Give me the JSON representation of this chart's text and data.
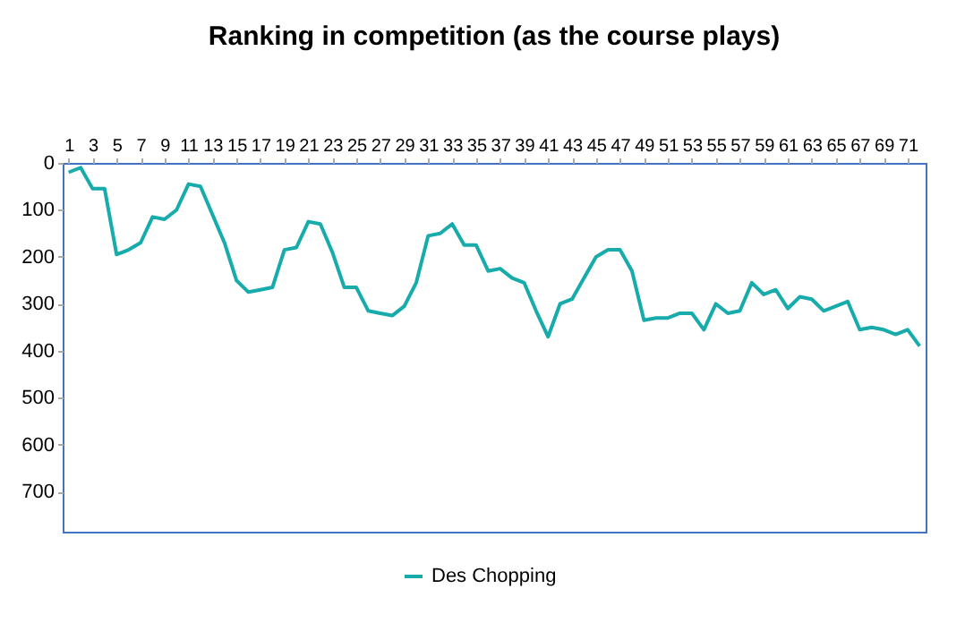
{
  "chart_data": {
    "type": "line",
    "title": "Ranking in competition (as the course plays)",
    "x": [
      1,
      2,
      3,
      4,
      5,
      6,
      7,
      8,
      9,
      10,
      11,
      12,
      13,
      14,
      15,
      16,
      17,
      18,
      19,
      20,
      21,
      22,
      23,
      24,
      25,
      26,
      27,
      28,
      29,
      30,
      31,
      32,
      33,
      34,
      35,
      36,
      37,
      38,
      39,
      40,
      41,
      42,
      43,
      44,
      45,
      46,
      47,
      48,
      49,
      50,
      51,
      52,
      53,
      54,
      55,
      56,
      57,
      58,
      59,
      60,
      61,
      62,
      63,
      64,
      65,
      66,
      67,
      68,
      69,
      70,
      71,
      72
    ],
    "xlim": [
      0.5,
      72.5
    ],
    "xticks": [
      1,
      3,
      5,
      7,
      9,
      11,
      13,
      15,
      17,
      19,
      21,
      23,
      25,
      27,
      29,
      31,
      33,
      35,
      37,
      39,
      41,
      43,
      45,
      47,
      49,
      51,
      53,
      55,
      57,
      59,
      61,
      63,
      65,
      67,
      69,
      71
    ],
    "series": [
      {
        "name": "Des Chopping",
        "color": "#17abab",
        "values": [
          20,
          10,
          55,
          55,
          195,
          185,
          170,
          115,
          120,
          100,
          45,
          50,
          110,
          170,
          250,
          275,
          270,
          265,
          185,
          180,
          125,
          130,
          190,
          265,
          265,
          315,
          320,
          325,
          305,
          255,
          155,
          150,
          130,
          175,
          175,
          230,
          225,
          245,
          255,
          315,
          370,
          300,
          290,
          245,
          200,
          185,
          185,
          230,
          335,
          330,
          330,
          320,
          320,
          355,
          300,
          320,
          315,
          255,
          280,
          270,
          310,
          285,
          290,
          315,
          305,
          295,
          355,
          350,
          355,
          365,
          355,
          390
        ]
      }
    ],
    "ylim": [
      785,
      0
    ],
    "yticks": [
      0,
      100,
      200,
      300,
      400,
      500,
      600,
      700
    ],
    "grid": false,
    "legend": "bottom",
    "marker": "none",
    "line_style": "solid"
  }
}
